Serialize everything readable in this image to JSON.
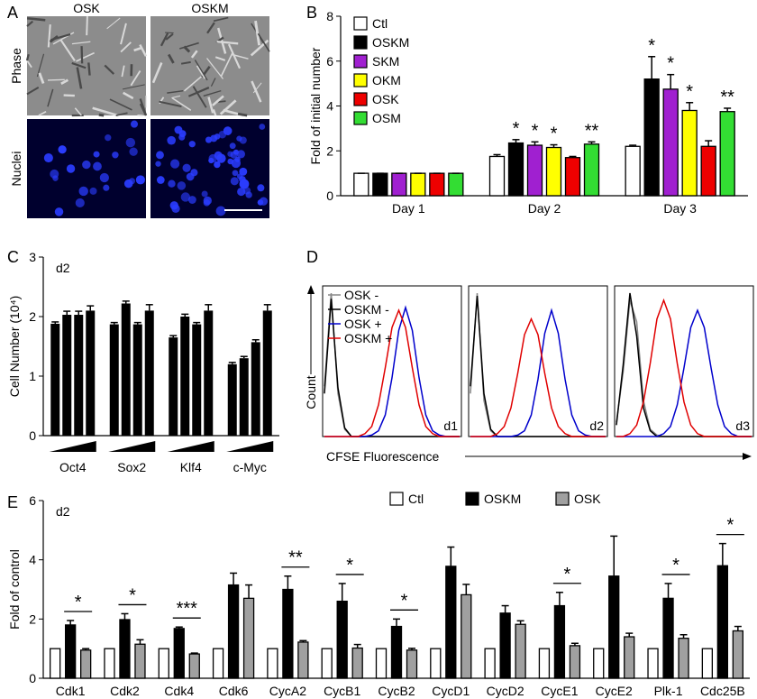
{
  "panel_labels": [
    "A",
    "B",
    "C",
    "D",
    "E"
  ],
  "panel_a": {
    "columns": [
      "OSK",
      "OSKM"
    ],
    "rows": [
      "Phase",
      "Nuclei"
    ]
  },
  "chart_data": [
    {
      "type": "bar",
      "ylabel": "Fold of initial number",
      "categories": [
        "Day 1",
        "Day 2",
        "Day 3"
      ],
      "ylim": [
        0,
        8
      ],
      "yticks": [
        0,
        2,
        4,
        6,
        8
      ],
      "legend": "upper left",
      "series": [
        {
          "name": "Ctl",
          "color": "#ffffff",
          "values": [
            1,
            1.75,
            2.2
          ],
          "errors": [
            0,
            0.08,
            0.05
          ],
          "significance": [
            null,
            null,
            null
          ]
        },
        {
          "name": "OSKM",
          "color": "#000000",
          "values": [
            1,
            2.35,
            5.2
          ],
          "errors": [
            0,
            0.15,
            1.0
          ],
          "significance": [
            null,
            "*",
            "*"
          ]
        },
        {
          "name": "SKM",
          "color": "#a020d0",
          "values": [
            1,
            2.25,
            4.75
          ],
          "errors": [
            0,
            0.15,
            0.65
          ],
          "significance": [
            null,
            "*",
            "*"
          ]
        },
        {
          "name": "OKM",
          "color": "#ffff00",
          "values": [
            1,
            2.15,
            3.8
          ],
          "errors": [
            0,
            0.12,
            0.35
          ],
          "significance": [
            null,
            "*",
            "*"
          ]
        },
        {
          "name": "OSK",
          "color": "#ee0000",
          "values": [
            1,
            1.7,
            2.2
          ],
          "errors": [
            0,
            0.05,
            0.25
          ],
          "significance": [
            null,
            null,
            null
          ]
        },
        {
          "name": "OSM",
          "color": "#33dd33",
          "values": [
            1,
            2.3,
            3.75
          ],
          "errors": [
            0,
            0.1,
            0.15
          ],
          "significance": [
            null,
            "**",
            "**"
          ]
        }
      ]
    },
    {
      "type": "bar",
      "annotation": "d2",
      "ylabel": "Cell Number (10⁴)",
      "ylim": [
        0,
        3
      ],
      "yticks": [
        0,
        1,
        2,
        3
      ],
      "color": "#000000",
      "groups": [
        {
          "name": "Oct4",
          "values": [
            1.88,
            2.03,
            2.03,
            2.1
          ],
          "errors": [
            0.03,
            0.06,
            0.06,
            0.08
          ]
        },
        {
          "name": "Sox2",
          "values": [
            1.87,
            2.22,
            1.87,
            2.1
          ],
          "errors": [
            0.03,
            0.04,
            0.03,
            0.1
          ]
        },
        {
          "name": "Klf4",
          "values": [
            1.65,
            2.0,
            1.87,
            2.1
          ],
          "errors": [
            0.03,
            0.04,
            0.03,
            0.1
          ]
        },
        {
          "name": "c-Myc",
          "values": [
            1.2,
            1.3,
            1.57,
            2.1
          ],
          "errors": [
            0.03,
            0.03,
            0.04,
            0.1
          ]
        }
      ]
    },
    {
      "type": "line",
      "xlabel": "CFSE Fluorescence",
      "ylabel": "Count",
      "x": [
        0,
        5,
        10,
        15,
        20,
        25,
        30,
        35,
        40,
        45,
        50,
        55,
        60,
        65,
        70,
        75,
        80,
        85,
        90,
        95,
        100
      ],
      "xlim": [
        0,
        100
      ],
      "ylim": [
        0,
        105
      ],
      "series": [
        {
          "name": "OSK -",
          "color": "#888888"
        },
        {
          "name": "OSKM -",
          "color": "#000000"
        },
        {
          "name": "OSK +",
          "color": "#0000cc"
        },
        {
          "name": "OSKM +",
          "color": "#e00000"
        }
      ],
      "panels": [
        {
          "label": "d1",
          "values": [
            [
              35,
              100,
              30,
              5,
              0,
              0,
              0,
              0,
              0,
              0,
              0,
              0,
              0,
              0,
              0,
              0,
              0,
              0,
              0,
              0,
              0
            ],
            [
              30,
              96,
              34,
              6,
              0,
              0,
              0,
              0,
              0,
              0,
              0,
              0,
              0,
              0,
              0,
              0,
              0,
              0,
              0,
              0,
              0
            ],
            [
              0,
              0,
              0,
              0,
              0,
              0,
              0,
              1,
              4,
              15,
              41,
              74,
              90,
              74,
              41,
              15,
              4,
              1,
              0,
              0,
              0
            ],
            [
              0,
              0,
              0,
              0,
              0,
              0,
              2,
              7,
              22,
              48,
              76,
              88,
              76,
              48,
              22,
              7,
              2,
              0,
              0,
              0,
              0
            ]
          ]
        },
        {
          "label": "d2",
          "values": [
            [
              30,
              100,
              25,
              4,
              0,
              0,
              0,
              0,
              0,
              0,
              0,
              0,
              0,
              0,
              0,
              0,
              0,
              0,
              0,
              0,
              0
            ],
            [
              35,
              98,
              30,
              5,
              0,
              0,
              0,
              0,
              0,
              0,
              0,
              0,
              0,
              0,
              0,
              0,
              0,
              0,
              0,
              0,
              0
            ],
            [
              0,
              0,
              0,
              0,
              0,
              0,
              0,
              1,
              4,
              15,
              40,
              72,
              88,
              72,
              40,
              15,
              4,
              1,
              0,
              0,
              0
            ],
            [
              0,
              0,
              0,
              0,
              2,
              7,
              20,
              44,
              71,
              82,
              71,
              44,
              20,
              7,
              2,
              0,
              0,
              0,
              0,
              0,
              0
            ]
          ]
        },
        {
          "label": "d3",
          "values": [
            [
              10,
              45,
              95,
              80,
              25,
              5,
              1,
              0,
              0,
              0,
              0,
              0,
              0,
              0,
              0,
              0,
              0,
              0,
              0,
              0,
              0
            ],
            [
              8,
              50,
              100,
              70,
              20,
              4,
              0,
              0,
              0,
              0,
              0,
              0,
              0,
              0,
              0,
              0,
              0,
              0,
              0,
              0,
              0
            ],
            [
              0,
              0,
              0,
              0,
              0,
              0,
              0,
              2,
              7,
              22,
              48,
              76,
              88,
              76,
              48,
              22,
              7,
              2,
              0,
              0,
              0
            ],
            [
              0,
              0,
              2,
              8,
              24,
              51,
              82,
              95,
              82,
              51,
              24,
              8,
              2,
              0,
              0,
              0,
              0,
              0,
              0,
              0,
              0
            ]
          ]
        }
      ]
    },
    {
      "type": "bar",
      "annotation": "d2",
      "ylabel": "Fold of control",
      "categories": [
        "Cdk1",
        "Cdk2",
        "Cdk4",
        "Cdk6",
        "CycA2",
        "CycB1",
        "CycB2",
        "CycD1",
        "CycD2",
        "CycE1",
        "CycE2",
        "Plk-1",
        "Cdc25B"
      ],
      "ylim": [
        0,
        6
      ],
      "yticks": [
        0,
        2,
        4,
        6
      ],
      "legend": "top",
      "series": [
        {
          "name": "Ctl",
          "color": "#ffffff",
          "values": [
            1,
            1,
            1,
            1,
            1,
            1,
            1,
            1,
            1,
            1,
            1,
            1,
            1
          ]
        },
        {
          "name": "OSKM",
          "color": "#000000",
          "values": [
            1.8,
            1.98,
            1.68,
            3.15,
            3.0,
            2.6,
            1.75,
            3.78,
            2.2,
            2.45,
            3.45,
            2.7,
            3.8
          ],
          "errors": [
            0.15,
            0.2,
            0.05,
            0.4,
            0.45,
            0.6,
            0.25,
            0.65,
            0.25,
            0.45,
            1.35,
            0.5,
            0.75
          ]
        },
        {
          "name": "OSK",
          "color": "#a0a0a0",
          "values": [
            0.95,
            1.15,
            0.82,
            2.7,
            1.22,
            1.02,
            0.95,
            2.82,
            1.82,
            1.1,
            1.4,
            1.35,
            1.6
          ],
          "errors": [
            0.05,
            0.15,
            0.03,
            0.45,
            0.05,
            0.12,
            0.06,
            0.35,
            0.12,
            0.08,
            0.12,
            0.12,
            0.15
          ]
        }
      ],
      "significance": [
        "*",
        "*",
        "***",
        null,
        "**",
        "*",
        "*",
        null,
        null,
        "*",
        null,
        "*",
        "*"
      ]
    }
  ]
}
